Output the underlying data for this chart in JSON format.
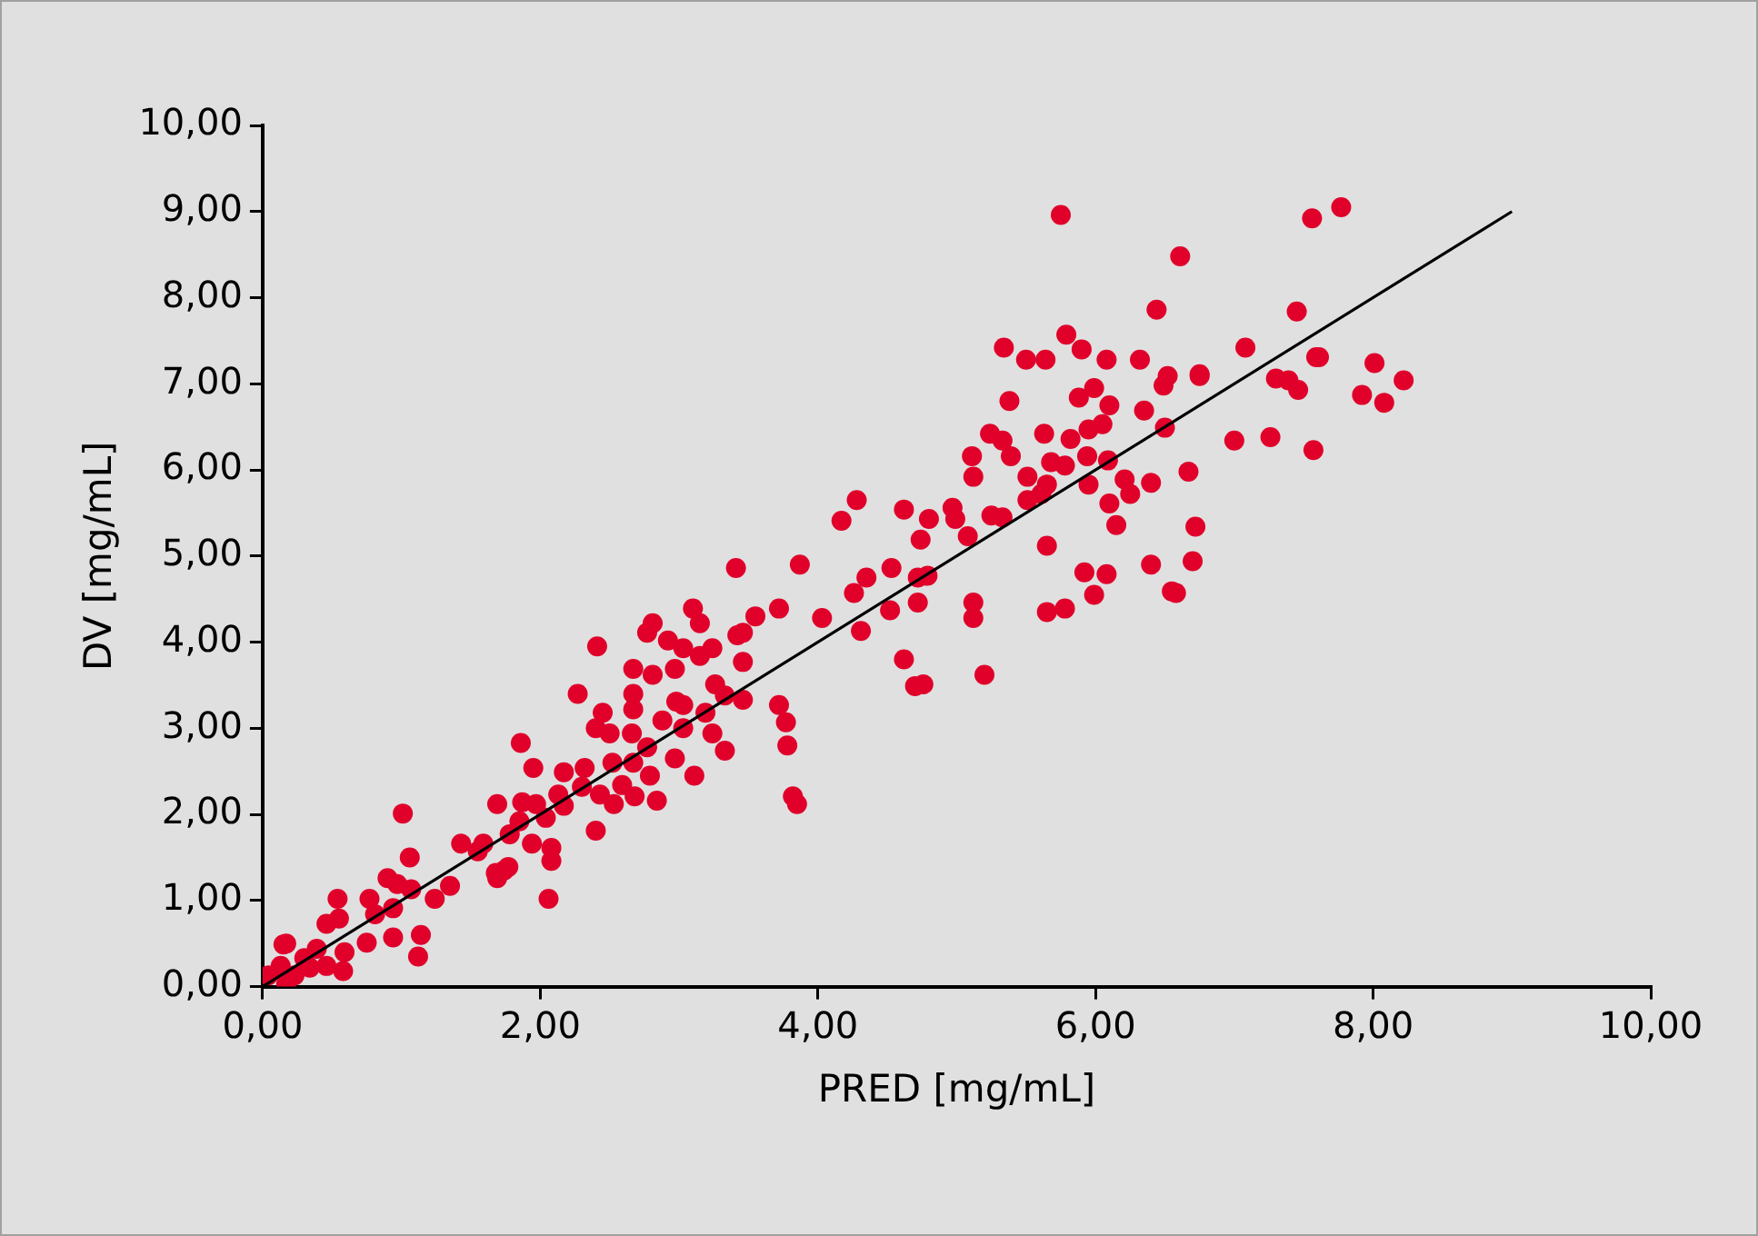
{
  "chart_data": {
    "type": "scatter",
    "xlabel": "PRED [mg/mL]",
    "ylabel": "DV [mg/mL]",
    "xlim": [
      0,
      10
    ],
    "ylim": [
      0,
      10
    ],
    "xticks": [
      {
        "value": 0,
        "label": "0,00"
      },
      {
        "value": 2,
        "label": "2,00"
      },
      {
        "value": 4,
        "label": "4,00"
      },
      {
        "value": 6,
        "label": "6,00"
      },
      {
        "value": 8,
        "label": "8,00"
      },
      {
        "value": 10,
        "label": "10,00"
      }
    ],
    "yticks": [
      {
        "value": 0,
        "label": "0,00"
      },
      {
        "value": 1,
        "label": "1,00"
      },
      {
        "value": 2,
        "label": "2,00"
      },
      {
        "value": 3,
        "label": "3,00"
      },
      {
        "value": 4,
        "label": "4,00"
      },
      {
        "value": 5,
        "label": "5,00"
      },
      {
        "value": 6,
        "label": "6,00"
      },
      {
        "value": 7,
        "label": "7,00"
      },
      {
        "value": 8,
        "label": "8,00"
      },
      {
        "value": 9,
        "label": "9,00"
      },
      {
        "value": 10,
        "label": "10,00"
      }
    ],
    "grid": false,
    "legend": false,
    "marker": "circle",
    "series": [
      {
        "color": "#e0002a",
        "x": [
          6.61,
          7.56,
          7.77,
          7.45,
          7.08,
          7.3,
          7.39,
          7.46,
          7.59,
          7.61,
          8.01,
          8.22,
          7.92,
          8.08,
          7.0,
          7.26,
          7.57,
          6.75,
          6.67,
          6.72,
          6.7,
          6.58,
          6.44,
          5.79,
          5.34,
          5.5,
          5.64,
          5.9,
          6.08,
          6.32,
          6.52,
          6.49,
          6.75,
          5.38,
          5.88,
          5.99,
          6.1,
          6.35,
          6.5,
          5.24,
          5.33,
          5.63,
          5.82,
          5.95,
          6.05,
          5.11,
          5.39,
          5.68,
          5.78,
          5.94,
          6.09,
          5.12,
          5.51,
          5.65,
          5.95,
          6.21,
          6.25,
          6.4,
          5.51,
          5.61,
          6.1,
          6.15,
          4.62,
          4.8,
          4.97,
          4.99,
          5.25,
          5.33,
          4.74,
          5.08,
          5.65,
          4.53,
          4.72,
          4.79,
          5.92,
          6.08,
          6.4,
          4.72,
          5.12,
          5.12,
          5.99,
          6.55,
          5.65,
          5.78,
          4.62,
          4.7,
          4.76,
          5.2,
          4.52,
          5.75,
          4.28,
          4.17,
          3.87,
          4.26,
          4.35,
          4.03,
          3.72,
          3.55,
          4.31,
          3.72,
          3.77,
          3.78,
          3.46,
          3.46,
          3.46,
          3.82,
          3.85,
          3.41,
          3.1,
          3.15,
          2.81,
          2.77,
          2.41,
          2.92,
          3.03,
          3.15,
          3.24,
          3.42,
          2.67,
          2.81,
          2.97,
          2.27,
          2.67,
          2.98,
          3.03,
          3.26,
          3.33,
          2.45,
          2.67,
          3.19,
          2.88,
          3.24,
          3.33,
          3.03,
          1.86,
          2.5,
          2.66,
          2.77,
          2.97,
          1.95,
          2.17,
          2.32,
          2.52,
          2.67,
          2.79,
          3.11,
          2.59,
          2.13,
          2.3,
          2.43,
          2.68,
          2.84,
          1.69,
          1.87,
          1.97,
          2.17,
          2.53,
          2.04,
          1.85,
          2.4,
          1.59,
          1.78,
          1.94,
          2.08,
          2.08,
          1.74,
          1.69,
          2.06,
          2.4,
          1.01,
          1.43,
          1.55,
          1.06,
          1.68,
          1.77,
          0.9,
          0.97,
          1.07,
          0.77,
          1.35,
          1.24,
          0.54,
          0.94,
          0.81,
          0.55,
          0.46,
          1.14,
          0.94,
          0.75,
          1.12,
          0.59,
          0.39,
          0.15,
          0.3,
          0.58,
          0.13,
          0.17,
          0.04,
          0.23,
          0.34,
          0.46,
          0.17
        ],
        "values": [
          8.48,
          8.92,
          9.05,
          7.84,
          7.42,
          7.06,
          7.04,
          6.93,
          7.31,
          7.31,
          7.24,
          7.04,
          6.87,
          6.78,
          6.34,
          6.38,
          6.23,
          7.11,
          5.98,
          5.34,
          4.94,
          4.57,
          7.86,
          7.57,
          7.42,
          7.28,
          7.28,
          7.4,
          7.28,
          7.28,
          7.09,
          6.98,
          7.09,
          6.8,
          6.84,
          6.95,
          6.75,
          6.69,
          6.49,
          6.42,
          6.34,
          6.42,
          6.36,
          6.47,
          6.53,
          6.16,
          6.16,
          6.09,
          6.05,
          6.16,
          6.11,
          5.92,
          5.92,
          5.83,
          5.83,
          5.89,
          5.72,
          5.85,
          5.65,
          5.72,
          5.61,
          5.36,
          5.54,
          5.43,
          5.56,
          5.43,
          5.47,
          5.45,
          5.19,
          5.23,
          5.12,
          4.86,
          4.75,
          4.77,
          4.81,
          4.79,
          4.9,
          4.46,
          4.46,
          4.28,
          4.55,
          4.59,
          4.35,
          4.39,
          3.8,
          3.49,
          3.51,
          3.62,
          4.37,
          8.96,
          5.65,
          5.41,
          4.9,
          4.57,
          4.75,
          4.28,
          4.39,
          4.3,
          4.13,
          3.27,
          3.07,
          2.8,
          3.33,
          3.77,
          4.11,
          2.21,
          2.12,
          4.86,
          4.39,
          4.22,
          4.22,
          4.11,
          3.95,
          4.02,
          3.93,
          3.84,
          3.93,
          4.08,
          3.69,
          3.62,
          3.69,
          3.4,
          3.4,
          3.31,
          3.27,
          3.51,
          3.38,
          3.18,
          3.22,
          3.18,
          3.09,
          2.94,
          2.74,
          3.0,
          2.83,
          2.94,
          2.94,
          2.78,
          2.65,
          2.54,
          2.49,
          2.54,
          2.6,
          2.6,
          2.45,
          2.45,
          2.34,
          2.23,
          2.32,
          2.23,
          2.21,
          2.16,
          2.12,
          2.14,
          2.12,
          2.1,
          2.12,
          1.96,
          1.92,
          1.81,
          1.66,
          1.77,
          1.66,
          1.61,
          1.46,
          1.35,
          1.26,
          1.02,
          3.0,
          2.01,
          1.66,
          1.57,
          1.5,
          1.32,
          1.39,
          1.26,
          1.19,
          1.13,
          1.02,
          1.17,
          1.02,
          1.02,
          0.91,
          0.84,
          0.79,
          0.73,
          0.6,
          0.57,
          0.51,
          0.35,
          0.4,
          0.44,
          0.49,
          0.33,
          0.18,
          0.24,
          0.03,
          0.13,
          0.13,
          0.22,
          0.24,
          0.5
        ]
      },
      {
        "type": "line",
        "color": "#000000",
        "marker": "none",
        "x": [
          0,
          9
        ],
        "values": [
          0,
          9
        ]
      }
    ]
  }
}
